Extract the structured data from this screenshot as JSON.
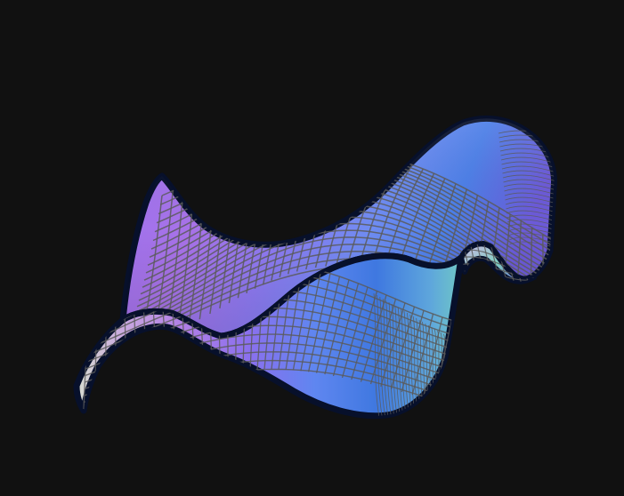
{
  "scene": {
    "background_color": "#111111",
    "outline_color": "#0a1430",
    "grid_color": "#5a5a5a",
    "palette": [
      "#d8dfd2",
      "#c7a3e3",
      "#a86ae8",
      "#8a6ef0",
      "#6a80f5",
      "#3f74e0",
      "#5aa0e4",
      "#69c9c0"
    ]
  }
}
